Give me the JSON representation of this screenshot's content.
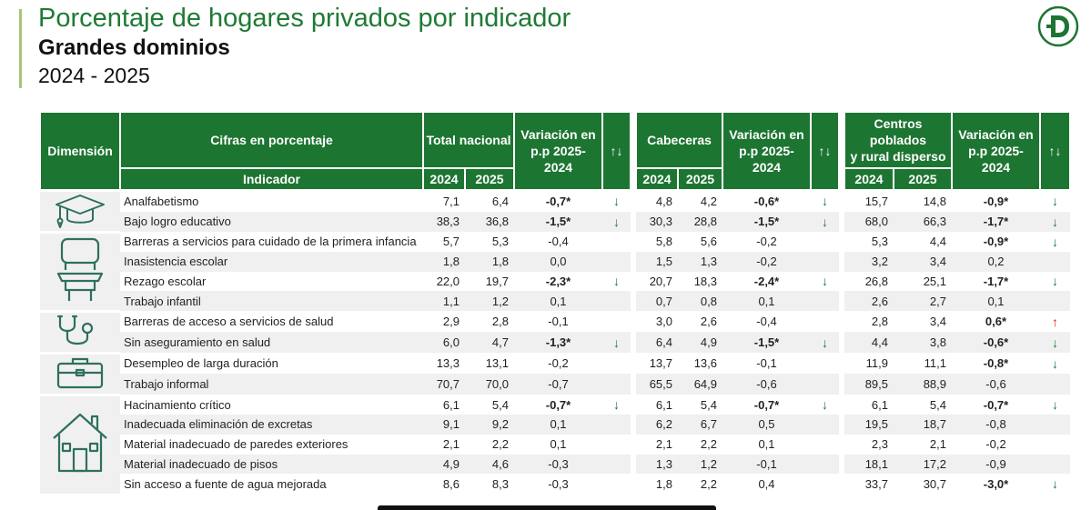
{
  "header": {
    "title": "Porcentaje de hogares privados por indicador",
    "subtitle": "Grandes dominios",
    "years": "2024 - 2025"
  },
  "logo": {
    "letter": "D",
    "color": "#1d7532"
  },
  "table": {
    "headers": {
      "dimension": "Dimensión",
      "cifras": "Cifras en porcentaje",
      "indicador": "Indicador",
      "total_nacional": "Total nacional",
      "cabeceras": "Cabeceras",
      "centros_l1": "Centros poblados",
      "centros_l2": "y rural disperso",
      "var_l1": "Variación en",
      "var_l2": "p.p 2025-",
      "var_l3": "2024",
      "arrows": "↑↓",
      "y2024": "2024",
      "y2025": "2025"
    },
    "dimensions": [
      {
        "icon": "graduation-cap-icon",
        "rows": 2
      },
      {
        "icon": "school-desk-icon",
        "rows": 4
      },
      {
        "icon": "stethoscope-icon",
        "rows": 2
      },
      {
        "icon": "briefcase-icon",
        "rows": 2
      },
      {
        "icon": "house-icon",
        "rows": 5
      }
    ],
    "rows": [
      {
        "indicador": "Analfabetismo",
        "tn2024": "7,1",
        "tn2025": "6,4",
        "tnvar": "-0,7*",
        "tnarr": "↓",
        "cab2024": "4,8",
        "cab2025": "4,2",
        "cabvar": "-0,6*",
        "cabarr": "↓",
        "cp2024": "15,7",
        "cp2025": "14,8",
        "cpvar": "-0,9*",
        "cparr": "↓"
      },
      {
        "indicador": "Bajo logro educativo",
        "tn2024": "38,3",
        "tn2025": "36,8",
        "tnvar": "-1,5*",
        "tnarr": "↓",
        "cab2024": "30,3",
        "cab2025": "28,8",
        "cabvar": "-1,5*",
        "cabarr": "↓",
        "cp2024": "68,0",
        "cp2025": "66,3",
        "cpvar": "-1,7*",
        "cparr": "↓"
      },
      {
        "indicador": "Barreras a servicios para cuidado de la primera infancia",
        "tn2024": "5,7",
        "tn2025": "5,3",
        "tnvar": "-0,4",
        "tnarr": "",
        "cab2024": "5,8",
        "cab2025": "5,6",
        "cabvar": "-0,2",
        "cabarr": "",
        "cp2024": "5,3",
        "cp2025": "4,4",
        "cpvar": "-0,9*",
        "cparr": "↓"
      },
      {
        "indicador": "Inasistencia escolar",
        "tn2024": "1,8",
        "tn2025": "1,8",
        "tnvar": "0,0",
        "tnarr": "",
        "cab2024": "1,5",
        "cab2025": "1,3",
        "cabvar": "-0,2",
        "cabarr": "",
        "cp2024": "3,2",
        "cp2025": "3,4",
        "cpvar": "0,2",
        "cparr": ""
      },
      {
        "indicador": "Rezago escolar",
        "tn2024": "22,0",
        "tn2025": "19,7",
        "tnvar": "-2,3*",
        "tnarr": "↓",
        "cab2024": "20,7",
        "cab2025": "18,3",
        "cabvar": "-2,4*",
        "cabarr": "↓",
        "cp2024": "26,8",
        "cp2025": "25,1",
        "cpvar": "-1,7*",
        "cparr": "↓"
      },
      {
        "indicador": "Trabajo infantil",
        "tn2024": "1,1",
        "tn2025": "1,2",
        "tnvar": "0,1",
        "tnarr": "",
        "cab2024": "0,7",
        "cab2025": "0,8",
        "cabvar": "0,1",
        "cabarr": "",
        "cp2024": "2,6",
        "cp2025": "2,7",
        "cpvar": "0,1",
        "cparr": ""
      },
      {
        "indicador": "Barreras de acceso a servicios de salud",
        "tn2024": "2,9",
        "tn2025": "2,8",
        "tnvar": "-0,1",
        "tnarr": "",
        "cab2024": "3,0",
        "cab2025": "2,6",
        "cabvar": "-0,4",
        "cabarr": "",
        "cp2024": "2,8",
        "cp2025": "3,4",
        "cpvar": "0,6*",
        "cparr": "↑"
      },
      {
        "indicador": "Sin aseguramiento en salud",
        "tn2024": "6,0",
        "tn2025": "4,7",
        "tnvar": "-1,3*",
        "tnarr": "↓",
        "cab2024": "6,4",
        "cab2025": "4,9",
        "cabvar": "-1,5*",
        "cabarr": "↓",
        "cp2024": "4,4",
        "cp2025": "3,8",
        "cpvar": "-0,6*",
        "cparr": "↓"
      },
      {
        "indicador": "Desempleo de larga duración",
        "tn2024": "13,3",
        "tn2025": "13,1",
        "tnvar": "-0,2",
        "tnarr": "",
        "cab2024": "13,7",
        "cab2025": "13,6",
        "cabvar": "-0,1",
        "cabarr": "",
        "cp2024": "11,9",
        "cp2025": "11,1",
        "cpvar": "-0,8*",
        "cparr": "↓"
      },
      {
        "indicador": "Trabajo informal",
        "tn2024": "70,7",
        "tn2025": "70,0",
        "tnvar": "-0,7",
        "tnarr": "",
        "cab2024": "65,5",
        "cab2025": "64,9",
        "cabvar": "-0,6",
        "cabarr": "",
        "cp2024": "89,5",
        "cp2025": "88,9",
        "cpvar": "-0,6",
        "cparr": ""
      },
      {
        "indicador": "Hacinamiento crítico",
        "tn2024": "6,1",
        "tn2025": "5,4",
        "tnvar": "-0,7*",
        "tnarr": "↓",
        "cab2024": "6,1",
        "cab2025": "5,4",
        "cabvar": "-0,7*",
        "cabarr": "↓",
        "cp2024": "6,1",
        "cp2025": "5,4",
        "cpvar": "-0,7*",
        "cparr": "↓"
      },
      {
        "indicador": "Inadecuada eliminación de excretas",
        "tn2024": "9,1",
        "tn2025": "9,2",
        "tnvar": "0,1",
        "tnarr": "",
        "cab2024": "6,2",
        "cab2025": "6,7",
        "cabvar": "0,5",
        "cabarr": "",
        "cp2024": "19,5",
        "cp2025": "18,7",
        "cpvar": "-0,8",
        "cparr": ""
      },
      {
        "indicador": "Material inadecuado de paredes exteriores",
        "tn2024": "2,1",
        "tn2025": "2,2",
        "tnvar": "0,1",
        "tnarr": "",
        "cab2024": "2,1",
        "cab2025": "2,2",
        "cabvar": "0,1",
        "cabarr": "",
        "cp2024": "2,3",
        "cp2025": "2,1",
        "cpvar": "-0,2",
        "cparr": ""
      },
      {
        "indicador": "Material inadecuado de pisos",
        "tn2024": "4,9",
        "tn2025": "4,6",
        "tnvar": "-0,3",
        "tnarr": "",
        "cab2024": "1,3",
        "cab2025": "1,2",
        "cabvar": "-0,1",
        "cabarr": "",
        "cp2024": "18,1",
        "cp2025": "17,2",
        "cpvar": "-0,9",
        "cparr": ""
      },
      {
        "indicador": "Sin acceso a fuente de agua mejorada",
        "tn2024": "8,6",
        "tn2025": "8,3",
        "tnvar": "-0,3",
        "tnarr": "",
        "cab2024": "1,8",
        "cab2025": "2,2",
        "cabvar": "0,4",
        "cabarr": "",
        "cp2024": "33,7",
        "cp2025": "30,7",
        "cpvar": "-3,0*",
        "cparr": "↓"
      }
    ]
  }
}
